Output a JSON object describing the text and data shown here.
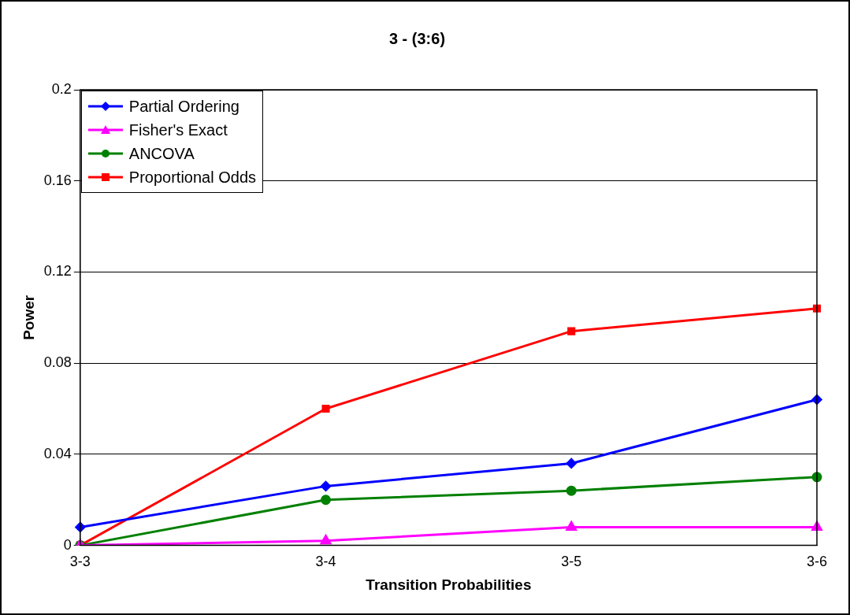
{
  "chart_data": {
    "type": "line",
    "title": "3 - (3:6)",
    "xlabel": "Transition Probabilities",
    "ylabel": "Power",
    "categories": [
      "3-3",
      "3-4",
      "3-5",
      "3-6"
    ],
    "series": [
      {
        "name": "Partial Ordering",
        "color": "#0000ff",
        "marker": "diamond",
        "values": [
          0.008,
          0.026,
          0.036,
          0.064
        ]
      },
      {
        "name": "Fisher's Exact",
        "color": "#ff00ff",
        "marker": "triangle",
        "values": [
          0,
          0.002,
          0.008,
          0.008
        ]
      },
      {
        "name": "ANCOVA",
        "color": "#008000",
        "marker": "circle",
        "values": [
          0,
          0.02,
          0.024,
          0.03
        ]
      },
      {
        "name": "Proportional Odds",
        "color": "#ff0000",
        "marker": "square",
        "values": [
          0,
          0.06,
          0.094,
          0.104
        ]
      }
    ],
    "ylim": [
      0,
      0.2
    ],
    "yticks": [
      0,
      0.04,
      0.08,
      0.12,
      0.16,
      0.2
    ],
    "grid": "y",
    "legend": "top left",
    "line_style": "solid"
  }
}
